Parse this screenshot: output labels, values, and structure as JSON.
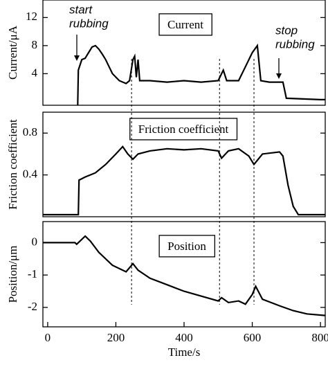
{
  "chart_data": [
    {
      "type": "line",
      "ylabel": "Current/μA",
      "label": "Current",
      "x": [
        88,
        90,
        100,
        110,
        120,
        130,
        140,
        150,
        160,
        170,
        180,
        190,
        210,
        230,
        240,
        250,
        255,
        260,
        265,
        270,
        300,
        350,
        400,
        450,
        500,
        515,
        525,
        560,
        580,
        600,
        615,
        625,
        650,
        690,
        700,
        800,
        814
      ],
      "values": [
        -0.5,
        4.5,
        6,
        6.2,
        7,
        7.8,
        8,
        7.5,
        6.8,
        6,
        5,
        4,
        3,
        2.6,
        3,
        6,
        6.5,
        3.5,
        6,
        3,
        3,
        2.8,
        3,
        2.8,
        3,
        4.5,
        3,
        3,
        5,
        7,
        8,
        3,
        2.8,
        2.8,
        0.5,
        0.3,
        0.3
      ],
      "color": "#000000",
      "xlim": [
        -14,
        814
      ],
      "ylim": [
        -0.5,
        14.5
      ],
      "yticks": [
        4,
        8,
        12
      ],
      "annotations": [
        [
          "start",
          "rubbing"
        ],
        [
          "stop",
          "rubbing"
        ]
      ],
      "vlines": [
        246,
        504,
        605
      ]
    },
    {
      "type": "line",
      "ylabel": "Friction coefficient",
      "label": "Friction coefficient",
      "x": [
        -14,
        90,
        92,
        110,
        140,
        170,
        200,
        220,
        235,
        250,
        265,
        300,
        350,
        400,
        450,
        500,
        510,
        530,
        560,
        590,
        605,
        630,
        680,
        690,
        705,
        720,
        735,
        814
      ],
      "values": [
        0.02,
        0.02,
        0.35,
        0.38,
        0.42,
        0.5,
        0.6,
        0.67,
        0.6,
        0.55,
        0.6,
        0.63,
        0.65,
        0.64,
        0.65,
        0.63,
        0.56,
        0.63,
        0.65,
        0.58,
        0.5,
        0.6,
        0.62,
        0.58,
        0.3,
        0.1,
        0.02,
        0.02
      ],
      "color": "#000000",
      "xlim": [
        -14,
        814
      ],
      "ylim": [
        0,
        1
      ],
      "yticks": [
        0.4,
        0.8
      ]
    },
    {
      "type": "line",
      "ylabel": "Position/μm",
      "label": "Position",
      "xlabel": "Time/s",
      "x": [
        -14,
        80,
        85,
        100,
        110,
        125,
        150,
        190,
        230,
        250,
        265,
        300,
        350,
        400,
        450,
        500,
        510,
        530,
        560,
        580,
        600,
        610,
        630,
        680,
        720,
        760,
        814
      ],
      "values": [
        0,
        0,
        -0.05,
        0.1,
        0.2,
        0.05,
        -0.3,
        -0.7,
        -0.9,
        -0.65,
        -0.85,
        -1.1,
        -1.3,
        -1.5,
        -1.65,
        -1.8,
        -1.7,
        -1.85,
        -1.8,
        -1.9,
        -1.6,
        -1.35,
        -1.75,
        -1.95,
        -2.1,
        -2.2,
        -2.25
      ],
      "color": "#000000",
      "xlim": [
        -14,
        814
      ],
      "ylim": [
        -2.6,
        0.65
      ],
      "yticks": [
        0,
        -1,
        -2
      ],
      "xticks": [
        0,
        200,
        400,
        600,
        800
      ]
    }
  ]
}
